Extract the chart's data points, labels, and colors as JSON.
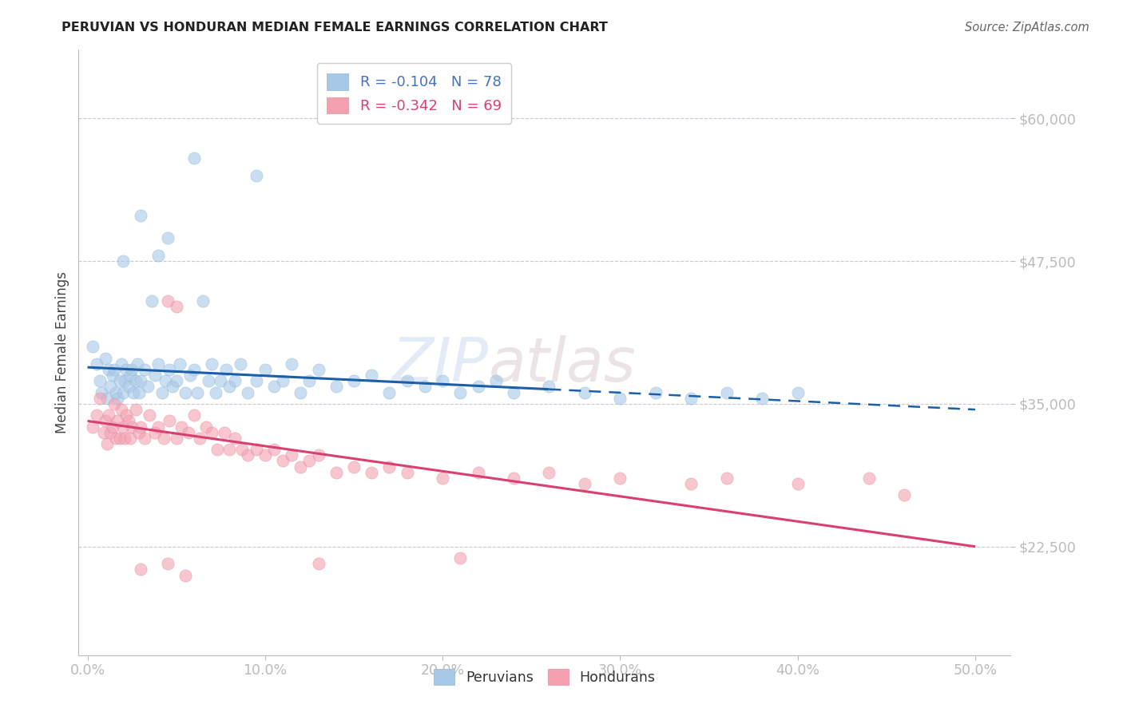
{
  "title": "PERUVIAN VS HONDURAN MEDIAN FEMALE EARNINGS CORRELATION CHART",
  "source": "Source: ZipAtlas.com",
  "xlabel": "",
  "ylabel": "Median Female Earnings",
  "xlim": [
    -0.5,
    52.0
  ],
  "ylim": [
    13000,
    66000
  ],
  "yticks": [
    22500,
    35000,
    47500,
    60000
  ],
  "ytick_labels": [
    "$22,500",
    "$35,000",
    "$47,500",
    "$60,000"
  ],
  "xticks": [
    0.0,
    10.0,
    20.0,
    30.0,
    40.0,
    50.0
  ],
  "xtick_labels": [
    "0.0%",
    "10.0%",
    "20.0%",
    "30.0%",
    "40.0%",
    "50.0%"
  ],
  "blue_R": -0.104,
  "blue_N": 78,
  "pink_R": -0.342,
  "pink_N": 69,
  "blue_color": "#a8c8e8",
  "pink_color": "#f4a0b0",
  "blue_line_color": "#1a5fa8",
  "pink_line_color": "#d94070",
  "blue_scatter": [
    [
      0.3,
      40000
    ],
    [
      0.5,
      38500
    ],
    [
      0.7,
      37000
    ],
    [
      0.8,
      36000
    ],
    [
      1.0,
      39000
    ],
    [
      1.1,
      35500
    ],
    [
      1.2,
      38000
    ],
    [
      1.3,
      36500
    ],
    [
      1.4,
      37500
    ],
    [
      1.5,
      38000
    ],
    [
      1.6,
      36000
    ],
    [
      1.7,
      35500
    ],
    [
      1.8,
      37000
    ],
    [
      1.9,
      38500
    ],
    [
      2.0,
      36000
    ],
    [
      2.1,
      37000
    ],
    [
      2.2,
      38000
    ],
    [
      2.3,
      36500
    ],
    [
      2.4,
      37500
    ],
    [
      2.5,
      38000
    ],
    [
      2.6,
      36000
    ],
    [
      2.7,
      37000
    ],
    [
      2.8,
      38500
    ],
    [
      2.9,
      36000
    ],
    [
      3.0,
      37000
    ],
    [
      3.2,
      38000
    ],
    [
      3.4,
      36500
    ],
    [
      3.6,
      44000
    ],
    [
      3.8,
      37500
    ],
    [
      4.0,
      38500
    ],
    [
      4.2,
      36000
    ],
    [
      4.4,
      37000
    ],
    [
      4.6,
      38000
    ],
    [
      4.8,
      36500
    ],
    [
      5.0,
      37000
    ],
    [
      5.2,
      38500
    ],
    [
      5.5,
      36000
    ],
    [
      5.8,
      37500
    ],
    [
      6.0,
      38000
    ],
    [
      6.2,
      36000
    ],
    [
      6.5,
      44000
    ],
    [
      6.8,
      37000
    ],
    [
      7.0,
      38500
    ],
    [
      7.2,
      36000
    ],
    [
      7.5,
      37000
    ],
    [
      7.8,
      38000
    ],
    [
      8.0,
      36500
    ],
    [
      8.3,
      37000
    ],
    [
      8.6,
      38500
    ],
    [
      9.0,
      36000
    ],
    [
      9.5,
      37000
    ],
    [
      10.0,
      38000
    ],
    [
      10.5,
      36500
    ],
    [
      11.0,
      37000
    ],
    [
      11.5,
      38500
    ],
    [
      12.0,
      36000
    ],
    [
      12.5,
      37000
    ],
    [
      13.0,
      38000
    ],
    [
      14.0,
      36500
    ],
    [
      15.0,
      37000
    ],
    [
      16.0,
      37500
    ],
    [
      17.0,
      36000
    ],
    [
      18.0,
      37000
    ],
    [
      19.0,
      36500
    ],
    [
      20.0,
      37000
    ],
    [
      21.0,
      36000
    ],
    [
      22.0,
      36500
    ],
    [
      23.0,
      37000
    ],
    [
      24.0,
      36000
    ],
    [
      26.0,
      36500
    ],
    [
      28.0,
      36000
    ],
    [
      30.0,
      35500
    ],
    [
      32.0,
      36000
    ],
    [
      34.0,
      35500
    ],
    [
      36.0,
      36000
    ],
    [
      38.0,
      35500
    ],
    [
      40.0,
      36000
    ],
    [
      4.5,
      49500
    ],
    [
      6.0,
      56500
    ],
    [
      9.5,
      55000
    ],
    [
      3.0,
      51500
    ],
    [
      2.0,
      47500
    ],
    [
      4.0,
      48000
    ]
  ],
  "pink_scatter": [
    [
      0.3,
      33000
    ],
    [
      0.5,
      34000
    ],
    [
      0.7,
      35500
    ],
    [
      0.9,
      32500
    ],
    [
      1.0,
      33500
    ],
    [
      1.1,
      31500
    ],
    [
      1.2,
      34000
    ],
    [
      1.3,
      32500
    ],
    [
      1.4,
      33000
    ],
    [
      1.5,
      35000
    ],
    [
      1.6,
      32000
    ],
    [
      1.7,
      33500
    ],
    [
      1.8,
      32000
    ],
    [
      1.9,
      34500
    ],
    [
      2.0,
      33000
    ],
    [
      2.1,
      32000
    ],
    [
      2.2,
      34000
    ],
    [
      2.3,
      33500
    ],
    [
      2.4,
      32000
    ],
    [
      2.5,
      33000
    ],
    [
      2.7,
      34500
    ],
    [
      2.9,
      32500
    ],
    [
      3.0,
      33000
    ],
    [
      3.2,
      32000
    ],
    [
      3.5,
      34000
    ],
    [
      3.8,
      32500
    ],
    [
      4.0,
      33000
    ],
    [
      4.3,
      32000
    ],
    [
      4.6,
      33500
    ],
    [
      5.0,
      32000
    ],
    [
      5.3,
      33000
    ],
    [
      5.7,
      32500
    ],
    [
      6.0,
      34000
    ],
    [
      6.3,
      32000
    ],
    [
      6.7,
      33000
    ],
    [
      7.0,
      32500
    ],
    [
      7.3,
      31000
    ],
    [
      7.7,
      32500
    ],
    [
      8.0,
      31000
    ],
    [
      8.3,
      32000
    ],
    [
      8.7,
      31000
    ],
    [
      9.0,
      30500
    ],
    [
      9.5,
      31000
    ],
    [
      10.0,
      30500
    ],
    [
      10.5,
      31000
    ],
    [
      11.0,
      30000
    ],
    [
      11.5,
      30500
    ],
    [
      12.0,
      29500
    ],
    [
      12.5,
      30000
    ],
    [
      13.0,
      30500
    ],
    [
      14.0,
      29000
    ],
    [
      15.0,
      29500
    ],
    [
      16.0,
      29000
    ],
    [
      17.0,
      29500
    ],
    [
      18.0,
      29000
    ],
    [
      20.0,
      28500
    ],
    [
      22.0,
      29000
    ],
    [
      24.0,
      28500
    ],
    [
      26.0,
      29000
    ],
    [
      28.0,
      28000
    ],
    [
      30.0,
      28500
    ],
    [
      34.0,
      28000
    ],
    [
      36.0,
      28500
    ],
    [
      40.0,
      28000
    ],
    [
      44.0,
      28500
    ],
    [
      46.0,
      27000
    ],
    [
      4.5,
      44000
    ],
    [
      5.0,
      43500
    ],
    [
      3.0,
      20500
    ],
    [
      4.5,
      21000
    ],
    [
      5.5,
      20000
    ],
    [
      13.0,
      21000
    ],
    [
      21.0,
      21500
    ]
  ],
  "blue_line": [
    [
      0.0,
      38200
    ],
    [
      50.0,
      34500
    ]
  ],
  "blue_solid_end": 26.0,
  "pink_line": [
    [
      0.0,
      33500
    ],
    [
      50.0,
      22500
    ]
  ],
  "watermark_line1": "ZIP",
  "watermark_line2": "atlas",
  "background_color": "#ffffff",
  "grid_color": "#c8c8d8",
  "axis_color": "#bbbbbb",
  "tick_color": "#4472c4",
  "legend_peruvians": "Peruvians",
  "legend_hondurans": "Hondurans"
}
